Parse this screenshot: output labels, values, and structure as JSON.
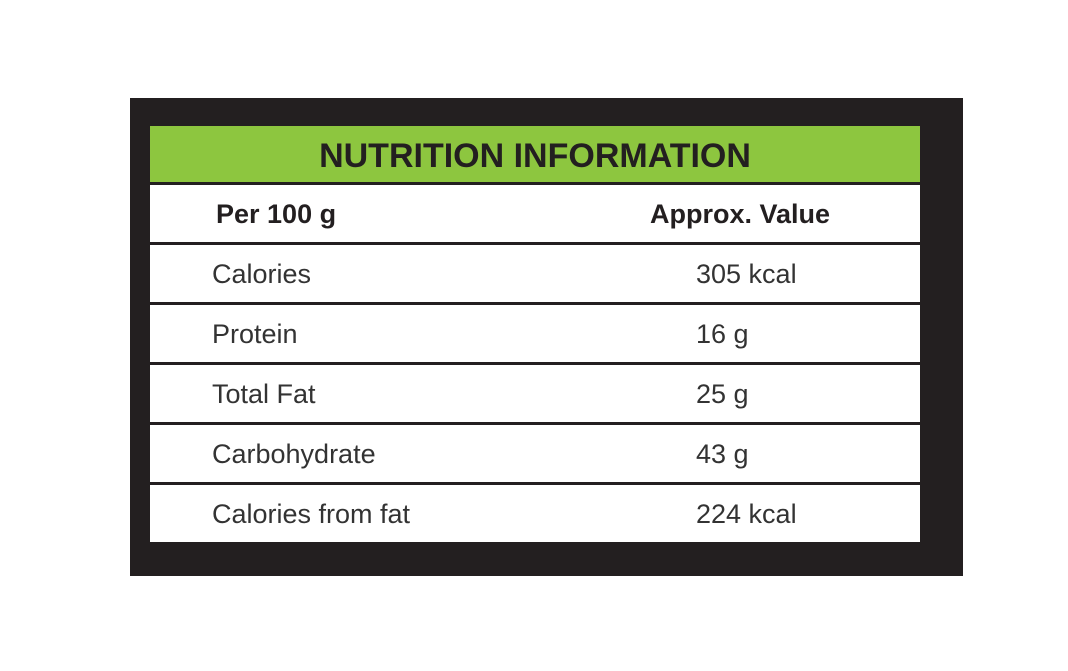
{
  "table": {
    "title": "NUTRITION INFORMATION",
    "header": [
      "Per 100 g",
      "Approx. Value"
    ],
    "rows": [
      [
        "Calories",
        "305 kcal"
      ],
      [
        "Protein",
        "16 g"
      ],
      [
        "Total Fat",
        "25 g"
      ],
      [
        "Carbohydrate",
        "43 g"
      ],
      [
        "Calories from fat",
        "224 kcal"
      ]
    ]
  }
}
